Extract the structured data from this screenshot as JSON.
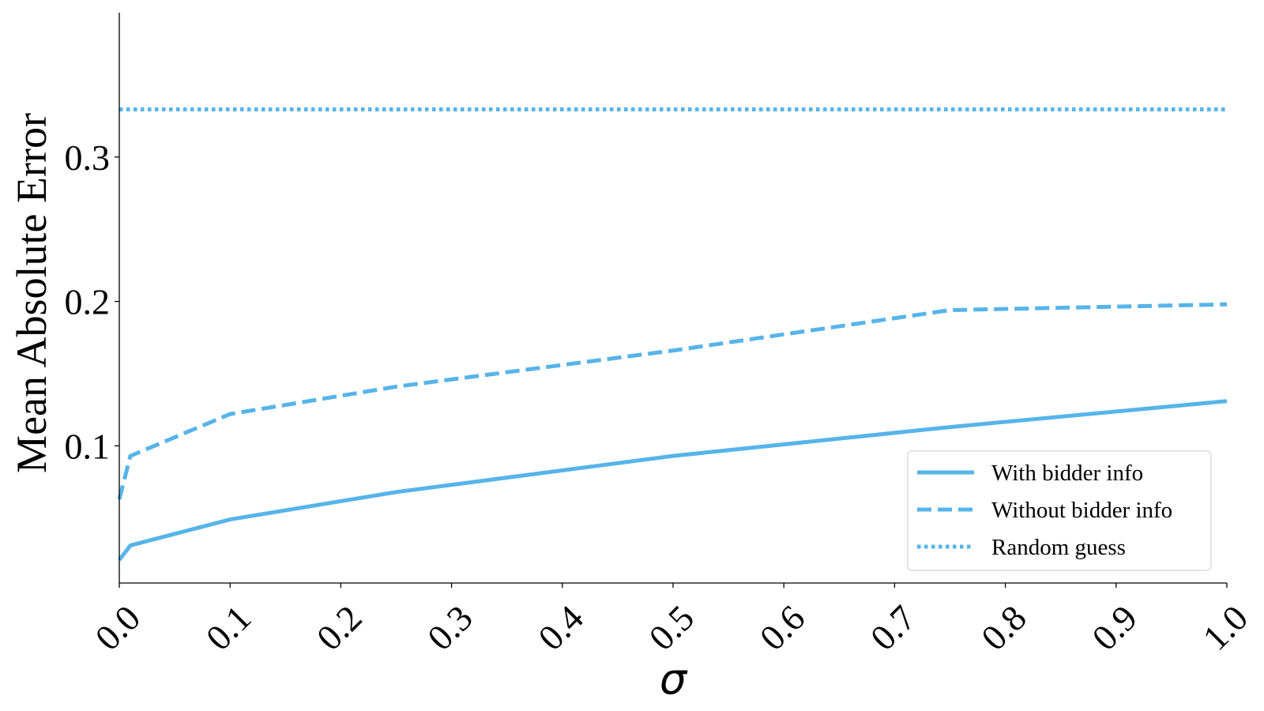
{
  "chart_data": {
    "type": "line",
    "title": "",
    "xlabel": "σ",
    "ylabel": "Mean Absolute Error",
    "xlim": [
      0.0,
      1.0
    ],
    "ylim": [
      0.005,
      0.4
    ],
    "x_ticks": [
      "0.0",
      "0.1",
      "0.2",
      "0.3",
      "0.4",
      "0.5",
      "0.6",
      "0.7",
      "0.8",
      "0.9",
      "1.0"
    ],
    "x_tick_values": [
      0.0,
      0.1,
      0.2,
      0.3,
      0.4,
      0.5,
      0.6,
      0.7,
      0.8,
      0.9,
      1.0
    ],
    "y_ticks": [
      "0.1",
      "0.2",
      "0.3"
    ],
    "y_tick_values": [
      0.1,
      0.2,
      0.3
    ],
    "grid": false,
    "legend_position": "lower-right",
    "color": "#56b4e9",
    "series": [
      {
        "name": "With bidder info",
        "style": "solid",
        "x": [
          0.0,
          0.01,
          0.1,
          0.25,
          0.5,
          0.75,
          1.0
        ],
        "y": [
          0.021,
          0.031,
          0.049,
          0.068,
          0.093,
          0.113,
          0.131
        ]
      },
      {
        "name": "Without bidder info",
        "style": "dashed",
        "x": [
          0.0,
          0.01,
          0.1,
          0.25,
          0.5,
          0.75,
          1.0
        ],
        "y": [
          0.063,
          0.093,
          0.122,
          0.141,
          0.166,
          0.194,
          0.198
        ]
      },
      {
        "name": "Random guess",
        "style": "dotted",
        "x": [
          0.0,
          1.0
        ],
        "y": [
          0.333,
          0.333
        ]
      }
    ]
  }
}
